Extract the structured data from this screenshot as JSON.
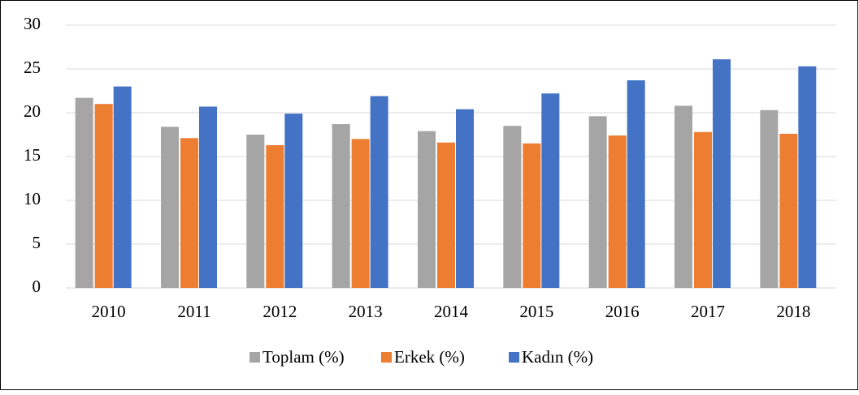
{
  "chart_data": {
    "type": "bar",
    "categories": [
      "2010",
      "2011",
      "2012",
      "2013",
      "2014",
      "2015",
      "2016",
      "2017",
      "2018"
    ],
    "series": [
      {
        "name": "Toplam (%)",
        "color": "#a5a5a5",
        "values": [
          21.7,
          18.4,
          17.5,
          18.7,
          17.9,
          18.5,
          19.6,
          20.8,
          20.3
        ]
      },
      {
        "name": "Erkek (%)",
        "color": "#ed7d31",
        "values": [
          21.0,
          17.1,
          16.3,
          17.0,
          16.6,
          16.5,
          17.4,
          17.8,
          17.6
        ]
      },
      {
        "name": "Kadın (%)",
        "color": "#4472c4",
        "values": [
          23.0,
          20.7,
          19.9,
          21.9,
          20.4,
          22.2,
          23.7,
          26.1,
          25.3
        ]
      }
    ],
    "ylim": [
      0,
      30
    ],
    "yticks": [
      0,
      5,
      10,
      15,
      20,
      25,
      30
    ],
    "grid": true,
    "legend": "bottom"
  }
}
